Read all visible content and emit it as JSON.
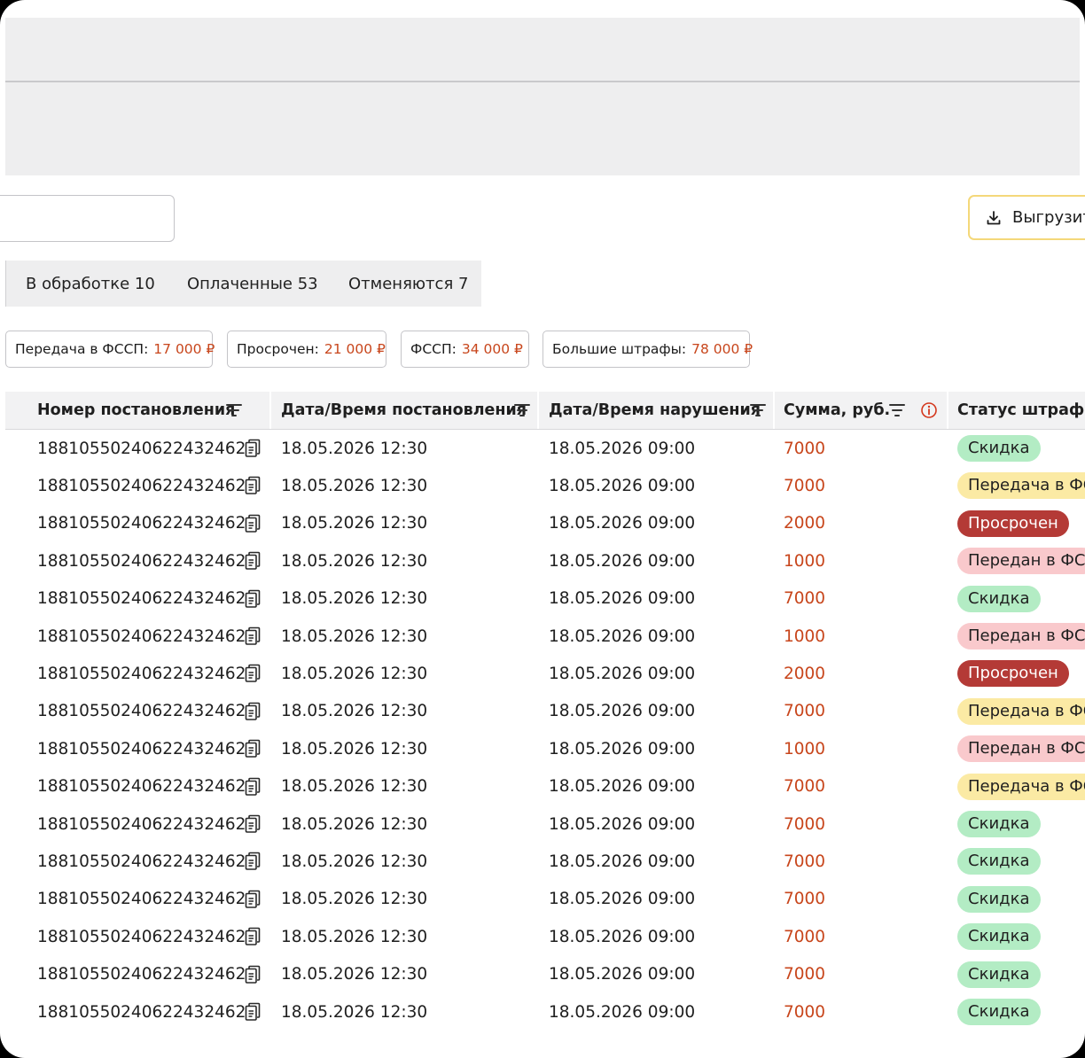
{
  "toolbar": {
    "export_label": "Выгрузит"
  },
  "tabs": [
    {
      "label": "В обработке 10"
    },
    {
      "label": "Оплаченные 53"
    },
    {
      "label": "Отменяются 7"
    }
  ],
  "chips": [
    {
      "label": "Передача в ФССП:",
      "amount": "17 000 ₽"
    },
    {
      "label": "Просрочен:",
      "amount": "21 000 ₽"
    },
    {
      "label": "ФССП:",
      "amount": "34 000 ₽"
    },
    {
      "label": "Большие штрафы:",
      "amount": "78 000 ₽"
    }
  ],
  "columns": {
    "number": "Номер постановления",
    "decree_date": "Дата/Время постановления",
    "violation_date": "Дата/Время нарушения",
    "sum": "Сумма, руб.",
    "status": "Статус штрафа"
  },
  "colors": {
    "accent_amount": "#c8461c",
    "status_discount_bg": "#b3ecc4",
    "status_transfer_bg": "#fbeaa4",
    "status_overdue_bg": "#b43a36",
    "status_transferred_bg": "#f9c9cc",
    "export_border": "#f4d87a"
  },
  "rows": [
    {
      "number": "18810550240622432462",
      "decree_date": "18.05.2026 12:30",
      "violation_date": "18.05.2026 09:00",
      "sum": "7000",
      "status": "Скидка",
      "status_type": "discount"
    },
    {
      "number": "18810550240622432462",
      "decree_date": "18.05.2026 12:30",
      "violation_date": "18.05.2026 09:00",
      "sum": "7000",
      "status": "Передача в ФС",
      "status_type": "transfer"
    },
    {
      "number": "18810550240622432462",
      "decree_date": "18.05.2026 12:30",
      "violation_date": "18.05.2026 09:00",
      "sum": "2000",
      "status": "Просрочен",
      "status_type": "overdue"
    },
    {
      "number": "18810550240622432462",
      "decree_date": "18.05.2026 12:30",
      "violation_date": "18.05.2026 09:00",
      "sum": "1000",
      "status": "Передан в ФС",
      "status_type": "transferred"
    },
    {
      "number": "18810550240622432462",
      "decree_date": "18.05.2026 12:30",
      "violation_date": "18.05.2026 09:00",
      "sum": "7000",
      "status": "Скидка",
      "status_type": "discount"
    },
    {
      "number": "18810550240622432462",
      "decree_date": "18.05.2026 12:30",
      "violation_date": "18.05.2026 09:00",
      "sum": "1000",
      "status": "Передан в ФС",
      "status_type": "transferred"
    },
    {
      "number": "18810550240622432462",
      "decree_date": "18.05.2026 12:30",
      "violation_date": "18.05.2026 09:00",
      "sum": "2000",
      "status": "Просрочен",
      "status_type": "overdue"
    },
    {
      "number": "18810550240622432462",
      "decree_date": "18.05.2026 12:30",
      "violation_date": "18.05.2026 09:00",
      "sum": "7000",
      "status": "Передача в ФС",
      "status_type": "transfer"
    },
    {
      "number": "18810550240622432462",
      "decree_date": "18.05.2026 12:30",
      "violation_date": "18.05.2026 09:00",
      "sum": "1000",
      "status": "Передан в ФС",
      "status_type": "transferred"
    },
    {
      "number": "18810550240622432462",
      "decree_date": "18.05.2026 12:30",
      "violation_date": "18.05.2026 09:00",
      "sum": "7000",
      "status": "Передача в ФС",
      "status_type": "transfer"
    },
    {
      "number": "18810550240622432462",
      "decree_date": "18.05.2026 12:30",
      "violation_date": "18.05.2026 09:00",
      "sum": "7000",
      "status": "Скидка",
      "status_type": "discount"
    },
    {
      "number": "18810550240622432462",
      "decree_date": "18.05.2026 12:30",
      "violation_date": "18.05.2026 09:00",
      "sum": "7000",
      "status": "Скидка",
      "status_type": "discount"
    },
    {
      "number": "18810550240622432462",
      "decree_date": "18.05.2026 12:30",
      "violation_date": "18.05.2026 09:00",
      "sum": "7000",
      "status": "Скидка",
      "status_type": "discount"
    },
    {
      "number": "18810550240622432462",
      "decree_date": "18.05.2026 12:30",
      "violation_date": "18.05.2026 09:00",
      "sum": "7000",
      "status": "Скидка",
      "status_type": "discount"
    },
    {
      "number": "18810550240622432462",
      "decree_date": "18.05.2026 12:30",
      "violation_date": "18.05.2026 09:00",
      "sum": "7000",
      "status": "Скидка",
      "status_type": "discount"
    },
    {
      "number": "18810550240622432462",
      "decree_date": "18.05.2026 12:30",
      "violation_date": "18.05.2026 09:00",
      "sum": "7000",
      "status": "Скидка",
      "status_type": "discount"
    }
  ]
}
